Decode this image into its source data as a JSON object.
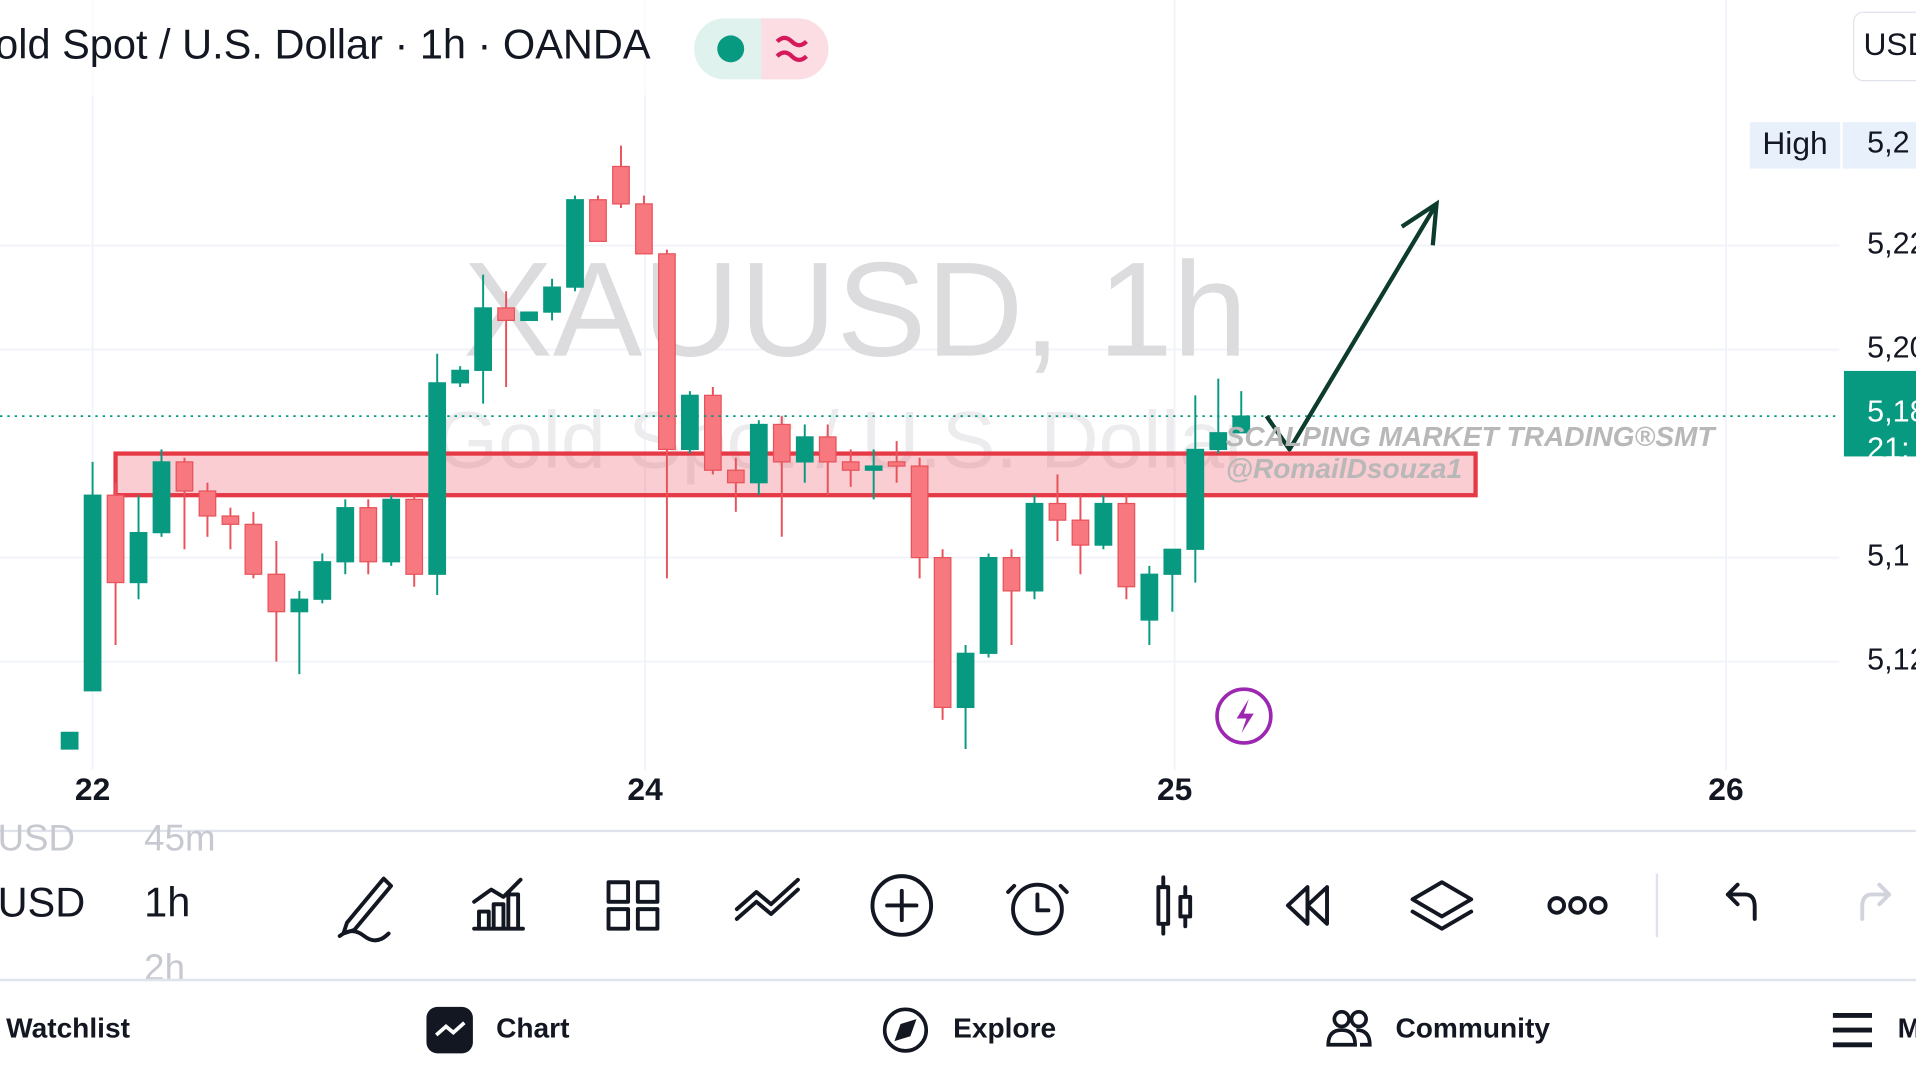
{
  "chart_data": {
    "type": "candlestick",
    "title": "old Spot / U.S. Dollar · 1h · OANDA",
    "watermark": "XAUUSD, 1h",
    "watermark_sub": "Gold Spot / U.S. Dollar",
    "xlim": [
      -3.03,
      77.02
    ],
    "ylim": [
      5099,
      5284
    ],
    "xticks": [
      {
        "value": 1,
        "label": "22"
      },
      {
        "value": 25.05,
        "label": "24"
      },
      {
        "value": 48.1,
        "label": "25"
      },
      {
        "value": 72.1,
        "label": "26"
      }
    ],
    "yticks": [
      {
        "value": 5225,
        "label": "5,22"
      },
      {
        "value": 5200,
        "label": "5,20"
      },
      {
        "value": 5150,
        "label": "5,1"
      },
      {
        "value": 5125,
        "label": "5,12"
      }
    ],
    "grid": true,
    "up_color": "#089981",
    "down_color": "#f7787f",
    "candles": [
      [
        5104,
        5108,
        5104,
        5108
      ],
      [
        5118,
        5173,
        5118,
        5165
      ],
      [
        5165,
        5168,
        5129,
        5144
      ],
      [
        5144,
        5165,
        5140,
        5156
      ],
      [
        5156,
        5176,
        5155,
        5173
      ],
      [
        5173,
        5174,
        5152,
        5166
      ],
      [
        5166,
        5168,
        5155,
        5160
      ],
      [
        5160,
        5162,
        5152,
        5158
      ],
      [
        5158,
        5161,
        5145,
        5146
      ],
      [
        5146,
        5154,
        5125,
        5137
      ],
      [
        5137,
        5142,
        5122,
        5140
      ],
      [
        5140,
        5151,
        5139,
        5149
      ],
      [
        5149,
        5164,
        5146,
        5162
      ],
      [
        5162,
        5164,
        5146,
        5149
      ],
      [
        5149,
        5165,
        5148,
        5164
      ],
      [
        5164,
        5165,
        5143,
        5146
      ],
      [
        5146,
        5199,
        5141,
        5192
      ],
      [
        5192,
        5196,
        5191,
        5195
      ],
      [
        5195,
        5218,
        5187,
        5210
      ],
      [
        5210,
        5214,
        5191,
        5207
      ],
      [
        5207,
        5209,
        5207,
        5209
      ],
      [
        5209,
        5217,
        5207,
        5215
      ],
      [
        5215,
        5237,
        5214,
        5236
      ],
      [
        5236,
        5237,
        5226,
        5226
      ],
      [
        5244,
        5249,
        5234,
        5235
      ],
      [
        5235,
        5237,
        5223,
        5223
      ],
      [
        5223,
        5224,
        5145,
        5176
      ],
      [
        5176,
        5190,
        5175,
        5189
      ],
      [
        5189,
        5191,
        5170,
        5171
      ],
      [
        5171,
        5174,
        5161,
        5168
      ],
      [
        5168,
        5183,
        5165,
        5182
      ],
      [
        5182,
        5184,
        5155,
        5173
      ],
      [
        5173,
        5182,
        5168,
        5179
      ],
      [
        5179,
        5182,
        5165,
        5173
      ],
      [
        5173,
        5176,
        5167,
        5171
      ],
      [
        5171,
        5176,
        5164,
        5172
      ],
      [
        5173,
        5178,
        5168,
        5172
      ],
      [
        5172,
        5174,
        5145,
        5150
      ],
      [
        5150,
        5152,
        5111,
        5114
      ],
      [
        5114,
        5129,
        5104,
        5127
      ],
      [
        5127,
        5151,
        5126,
        5150
      ],
      [
        5150,
        5152,
        5129,
        5142
      ],
      [
        5142,
        5165,
        5140,
        5163
      ],
      [
        5163,
        5170,
        5154,
        5159
      ],
      [
        5159,
        5165,
        5146,
        5153
      ],
      [
        5153,
        5165,
        5152,
        5163
      ],
      [
        5163,
        5165,
        5140,
        5143
      ],
      [
        5135,
        5148,
        5129,
        5146
      ],
      [
        5146,
        5152,
        5137,
        5152
      ],
      [
        5152,
        5189,
        5144,
        5176
      ],
      [
        5176,
        5193,
        5175,
        5180
      ],
      [
        5180,
        5190,
        5180,
        5184
      ]
    ],
    "zone": {
      "x": [
        2,
        61.2
      ],
      "y": [
        5165,
        5175
      ],
      "color": "#e63946"
    },
    "arrow": {
      "x": [
        52.1,
        53.1,
        59.5
      ],
      "y": [
        5184,
        5176,
        5235
      ],
      "color": "#0d3b2e"
    },
    "price_line": 5184,
    "price_label": [
      "5,18",
      "21:"
    ],
    "high_label": [
      "High",
      "5,2"
    ],
    "annotations": [
      "SCALPING MARKET TRADING®SMT",
      "@RomailDsouza1"
    ]
  },
  "ui": {
    "currency": "USD",
    "toolbar": {
      "symbol": "USD",
      "symbol_prev": "USD",
      "interval": "1h",
      "interval_prev": "45m",
      "interval_next": "2h"
    },
    "nav": [
      "Watchlist",
      "Chart",
      "Explore",
      "Community",
      "M"
    ]
  }
}
